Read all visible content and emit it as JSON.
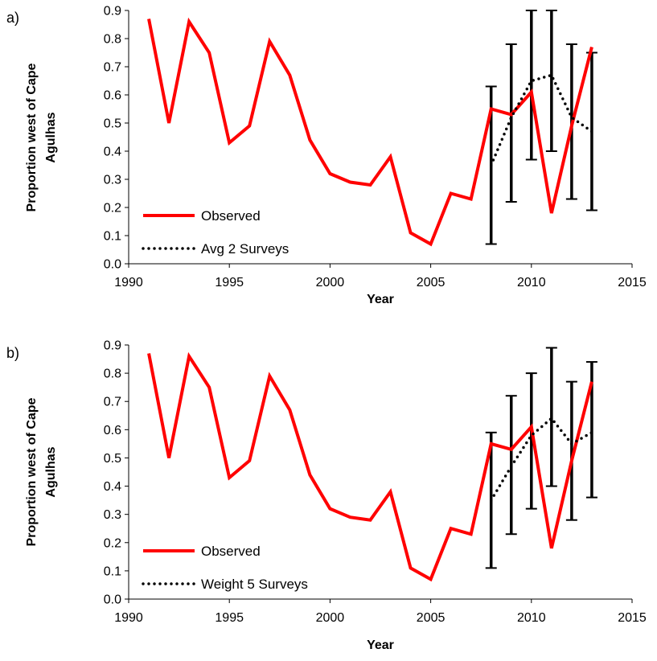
{
  "chart_data": [
    {
      "type": "line",
      "panel_label": "a)",
      "xlabel": "Year",
      "ylabel": [
        "Proportion west of Cape",
        "Agulhas"
      ],
      "xlim": [
        1990,
        2015
      ],
      "ylim": [
        0,
        0.9
      ],
      "xticks": [
        "1990",
        "1995",
        "2000",
        "2005",
        "2010",
        "2015"
      ],
      "yticks": [
        "0.0",
        "0.1",
        "0.2",
        "0.3",
        "0.4",
        "0.5",
        "0.6",
        "0.7",
        "0.8",
        "0.9"
      ],
      "grid": false,
      "legend_position": "bottom-left",
      "series": [
        {
          "name": "Observed",
          "style": "solid",
          "color": "#ff0000",
          "x": [
            1991,
            1992,
            1993,
            1994,
            1995,
            1996,
            1997,
            1998,
            1999,
            2000,
            2001,
            2002,
            2003,
            2004,
            2005,
            2006,
            2007,
            2008,
            2009,
            2010,
            2011,
            2012,
            2013
          ],
          "y": [
            0.87,
            0.5,
            0.86,
            0.75,
            0.43,
            0.49,
            0.79,
            0.67,
            0.44,
            0.32,
            0.29,
            0.28,
            0.38,
            0.11,
            0.07,
            0.25,
            0.23,
            0.55,
            0.53,
            0.61,
            0.18,
            0.49,
            0.77
          ]
        },
        {
          "name": "Avg 2 Surveys",
          "style": "dotted",
          "color": "#000000",
          "x": [
            2008,
            2009,
            2010,
            2011,
            2012,
            2013
          ],
          "y": [
            0.35,
            0.52,
            0.65,
            0.67,
            0.52,
            0.47
          ]
        }
      ],
      "error_bars": {
        "color": "#000000",
        "x": [
          2008,
          2009,
          2010,
          2011,
          2012,
          2013
        ],
        "lower": [
          0.07,
          0.22,
          0.37,
          0.4,
          0.23,
          0.19
        ],
        "upper": [
          0.63,
          0.78,
          0.9,
          0.9,
          0.78,
          0.75
        ]
      }
    },
    {
      "type": "line",
      "panel_label": "b)",
      "xlabel": "Year",
      "ylabel": [
        "Proportion west of Cape",
        "Agulhas"
      ],
      "xlim": [
        1990,
        2015
      ],
      "ylim": [
        0,
        0.9
      ],
      "xticks": [
        "1990",
        "1995",
        "2000",
        "2005",
        "2010",
        "2015"
      ],
      "yticks": [
        "0.0",
        "0.1",
        "0.2",
        "0.3",
        "0.4",
        "0.5",
        "0.6",
        "0.7",
        "0.8",
        "0.9"
      ],
      "grid": false,
      "legend_position": "bottom-left",
      "series": [
        {
          "name": "Observed",
          "style": "solid",
          "color": "#ff0000",
          "x": [
            1991,
            1992,
            1993,
            1994,
            1995,
            1996,
            1997,
            1998,
            1999,
            2000,
            2001,
            2002,
            2003,
            2004,
            2005,
            2006,
            2007,
            2008,
            2009,
            2010,
            2011,
            2012,
            2013
          ],
          "y": [
            0.87,
            0.5,
            0.86,
            0.75,
            0.43,
            0.49,
            0.79,
            0.67,
            0.44,
            0.32,
            0.29,
            0.28,
            0.38,
            0.11,
            0.07,
            0.25,
            0.23,
            0.55,
            0.53,
            0.61,
            0.18,
            0.49,
            0.77
          ]
        },
        {
          "name": "Weight 5 Surveys",
          "style": "dotted",
          "color": "#000000",
          "x": [
            2008,
            2009,
            2010,
            2011,
            2012,
            2013
          ],
          "y": [
            0.35,
            0.47,
            0.58,
            0.64,
            0.55,
            0.59
          ]
        }
      ],
      "error_bars": {
        "color": "#000000",
        "x": [
          2008,
          2009,
          2010,
          2011,
          2012,
          2013
        ],
        "lower": [
          0.11,
          0.23,
          0.32,
          0.4,
          0.28,
          0.36
        ],
        "upper": [
          0.59,
          0.72,
          0.8,
          0.89,
          0.77,
          0.84
        ]
      }
    }
  ]
}
